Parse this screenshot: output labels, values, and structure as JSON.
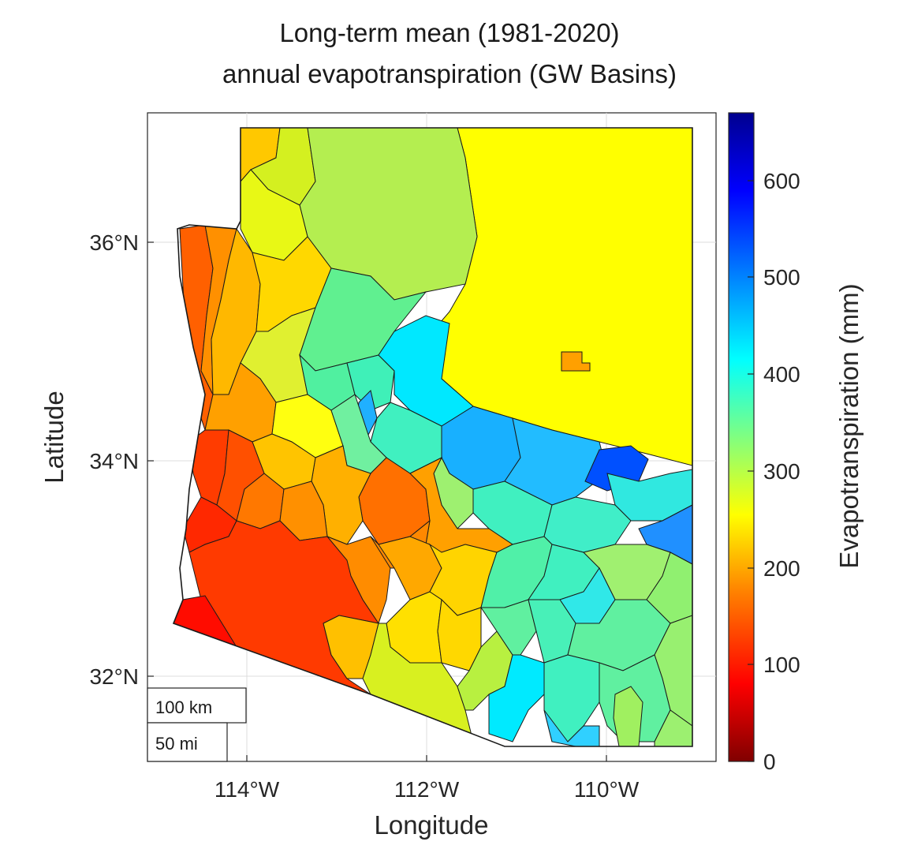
{
  "title": {
    "line1": "Long-term mean (1981-2020)",
    "line2": "annual evapotranspiration (GW Basins)"
  },
  "axes": {
    "xlabel": "Longitude",
    "ylabel": "Latitude",
    "xticks": [
      "114°W",
      "112°W",
      "110°W"
    ],
    "yticks": [
      "36°N",
      "34°N",
      "32°N"
    ],
    "grid": true
  },
  "colorbar": {
    "label": "Evapotranspiration (mm)",
    "ticks": [
      "0",
      "100",
      "200",
      "300",
      "400",
      "500",
      "600"
    ],
    "range": [
      0,
      670
    ],
    "colormap": "jet-reversed",
    "colors": [
      "#800000",
      "#ff0000",
      "#ff8000",
      "#ffff00",
      "#80ff80",
      "#00ffff",
      "#0080ff",
      "#0000ff",
      "#00008f"
    ]
  },
  "scale_bar": {
    "km_label": "100 km",
    "mi_label": "50 mi"
  },
  "map": {
    "region": "Arizona",
    "border_color": "#1a1a1a"
  }
}
